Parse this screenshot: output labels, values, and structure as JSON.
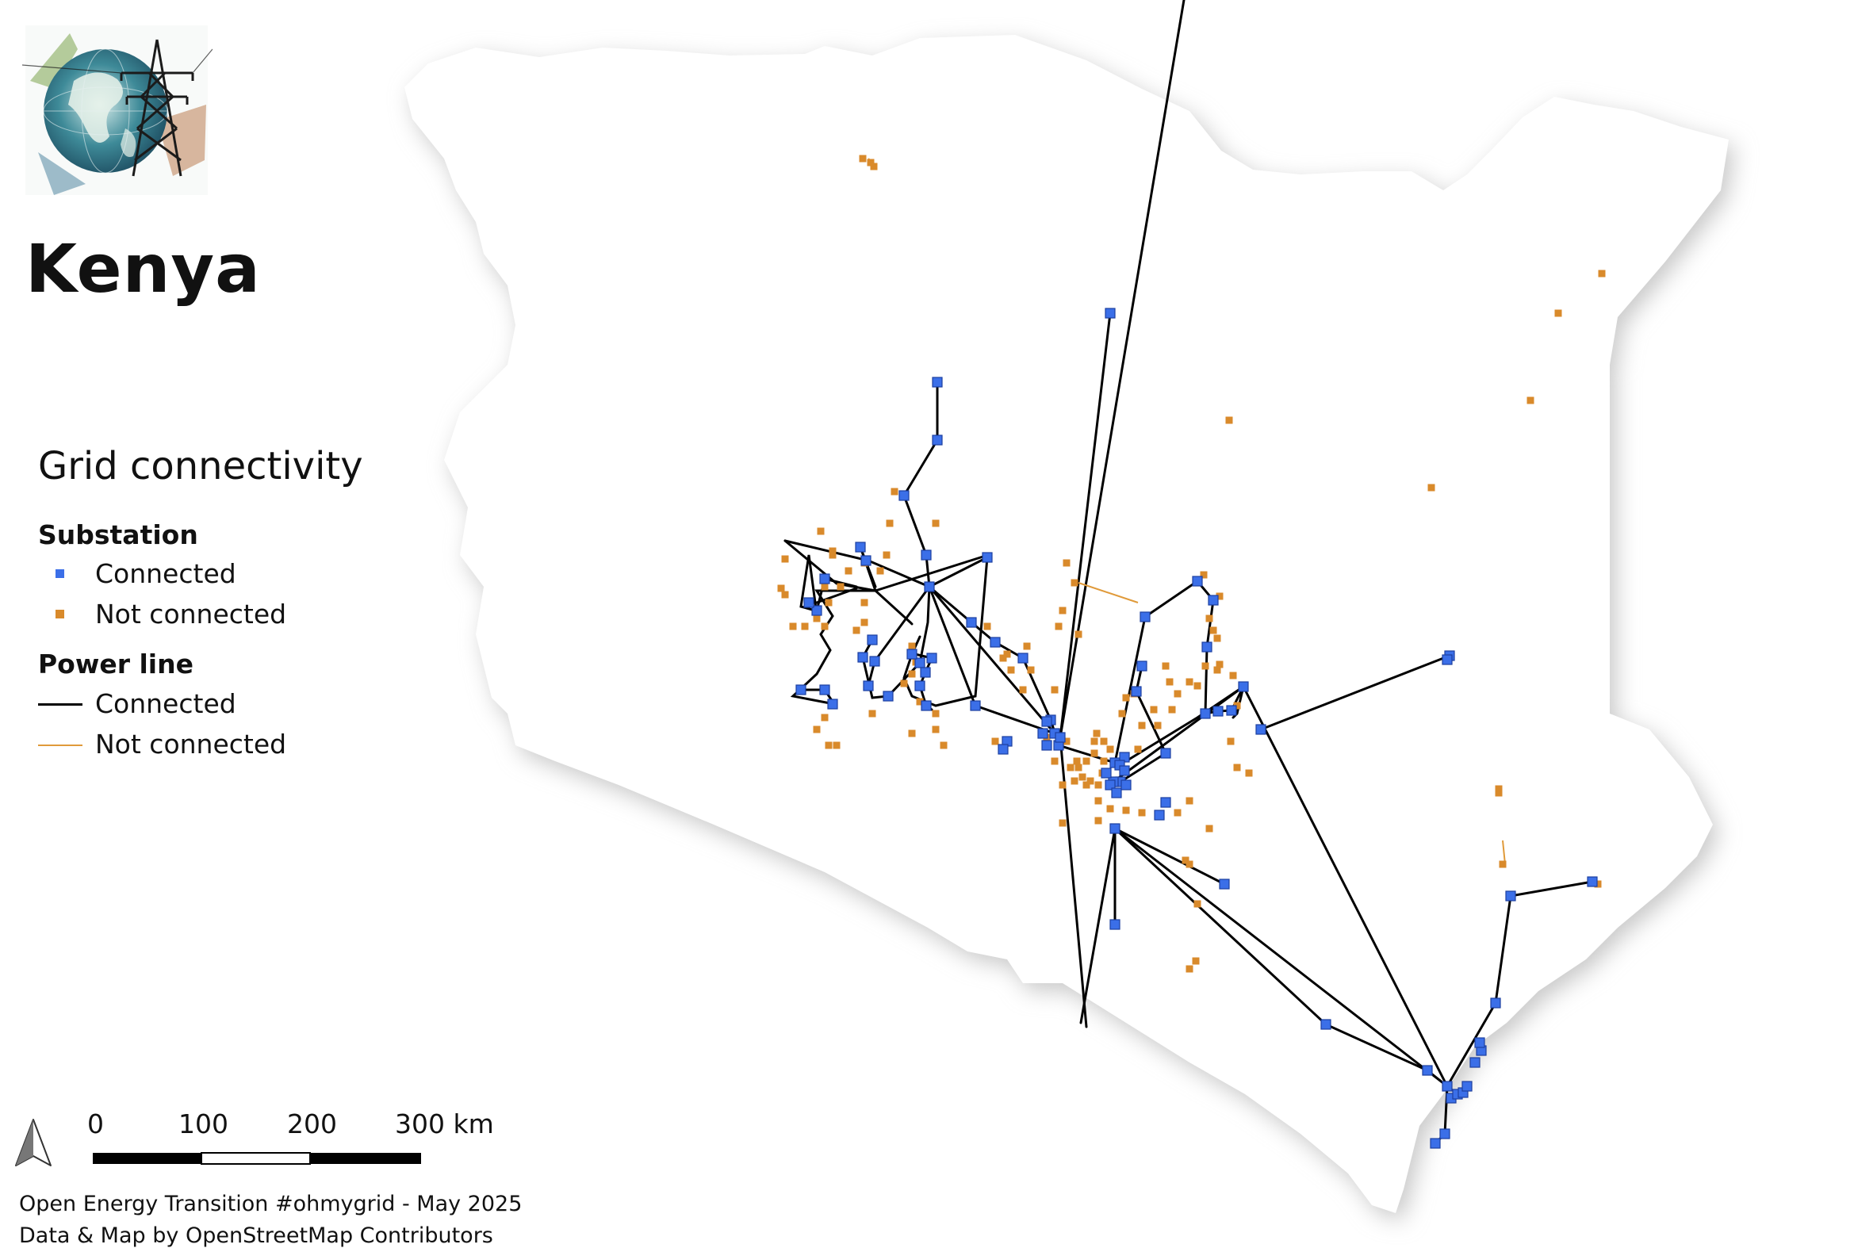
{
  "map": {
    "title": "Kenya",
    "legend": {
      "title": "Grid connectivity",
      "substation_heading": "Substation",
      "substation_connected": "Connected",
      "substation_not_connected": "Not connected",
      "line_heading": "Power line",
      "line_connected": "Connected",
      "line_not_connected": "Not connected"
    },
    "colors": {
      "connected_substation": "#3b6fe8",
      "not_connected_substation": "#d98a2b",
      "connected_line": "#000000",
      "not_connected_line": "#e09a3a",
      "land": "#ffffff",
      "shadow": "#cfcfcf"
    },
    "scale": {
      "ticks": [
        "0",
        "100",
        "200",
        "300 km"
      ]
    },
    "north_arrow_icon": "north-arrow-icon",
    "logo_icon": "globe-transmission-tower-icon",
    "credits": {
      "line1": "Open Energy Transition #ohmygrid - May 2025",
      "line2": "Data & Map by OpenStreetMap Contributors"
    }
  }
}
